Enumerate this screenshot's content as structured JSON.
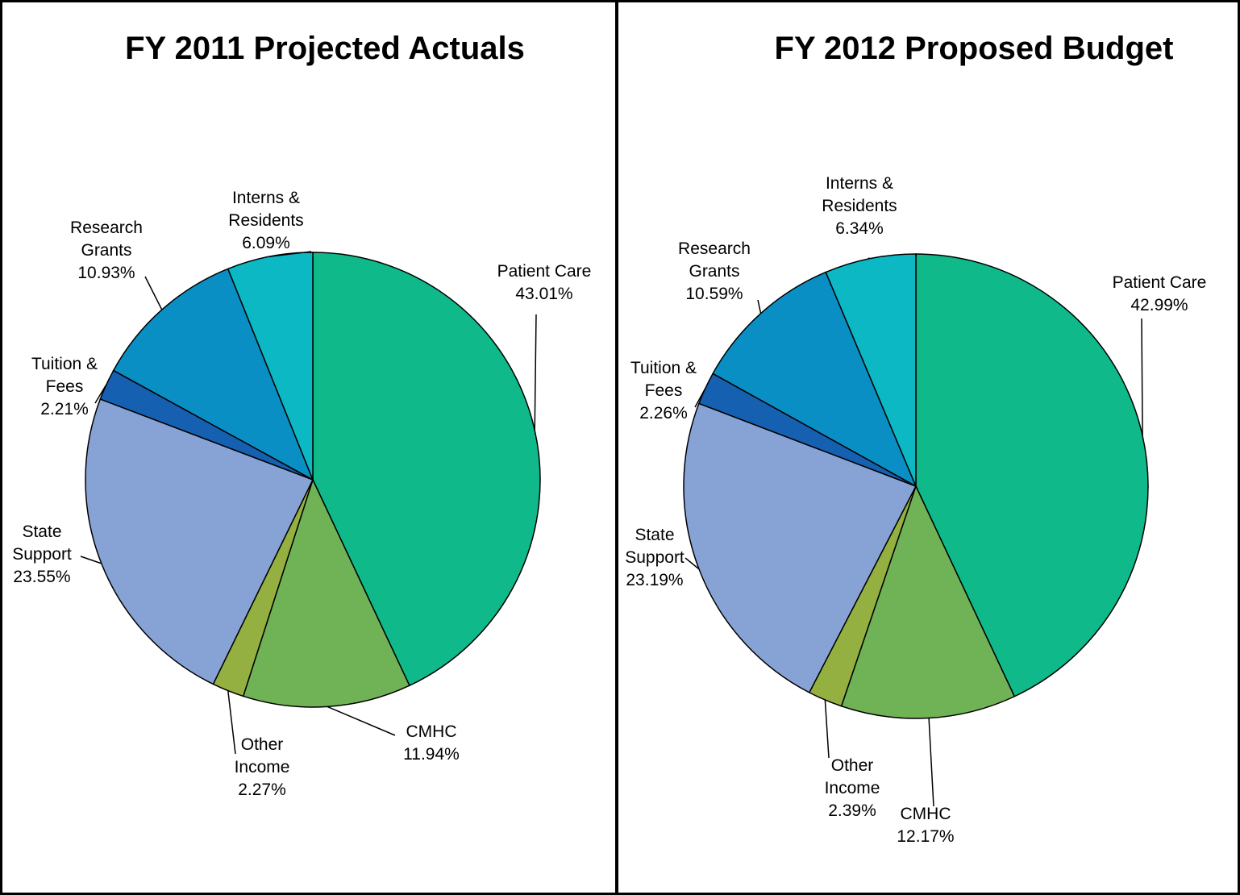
{
  "chart_data": [
    {
      "type": "pie",
      "title": "FY 2011 Projected Actuals",
      "categories": [
        "Patient Care",
        "CMHC",
        "Other Income",
        "State Support",
        "Tuition & Fees",
        "Research Grants",
        "Interns & Residents"
      ],
      "values": [
        43.01,
        11.94,
        2.27,
        23.55,
        2.21,
        10.93,
        6.09
      ],
      "value_labels": [
        "43.01%",
        "11.94%",
        "2.27%",
        "23.55%",
        "2.21%",
        "10.93%",
        "6.09%"
      ],
      "colors": [
        "#10b98a",
        "#70b357",
        "#94b040",
        "#87a3d6",
        "#1560b0",
        "#0a8fc4",
        "#0cb8c4"
      ]
    },
    {
      "type": "pie",
      "title": "FY 2012 Proposed Budget",
      "categories": [
        "Patient Care",
        "CMHC",
        "Other Income",
        "State Support",
        "Tuition & Fees",
        "Research Grants",
        "Interns & Residents"
      ],
      "values": [
        42.99,
        12.17,
        2.39,
        23.19,
        2.26,
        10.59,
        6.34
      ],
      "value_labels": [
        "42.99%",
        "12.17%",
        "2.39%",
        "23.19%",
        "2.26%",
        "10.59%",
        "6.34%"
      ],
      "colors": [
        "#10b98a",
        "#70b357",
        "#94b040",
        "#87a3d6",
        "#1560b0",
        "#0a8fc4",
        "#0cb8c4"
      ]
    }
  ]
}
